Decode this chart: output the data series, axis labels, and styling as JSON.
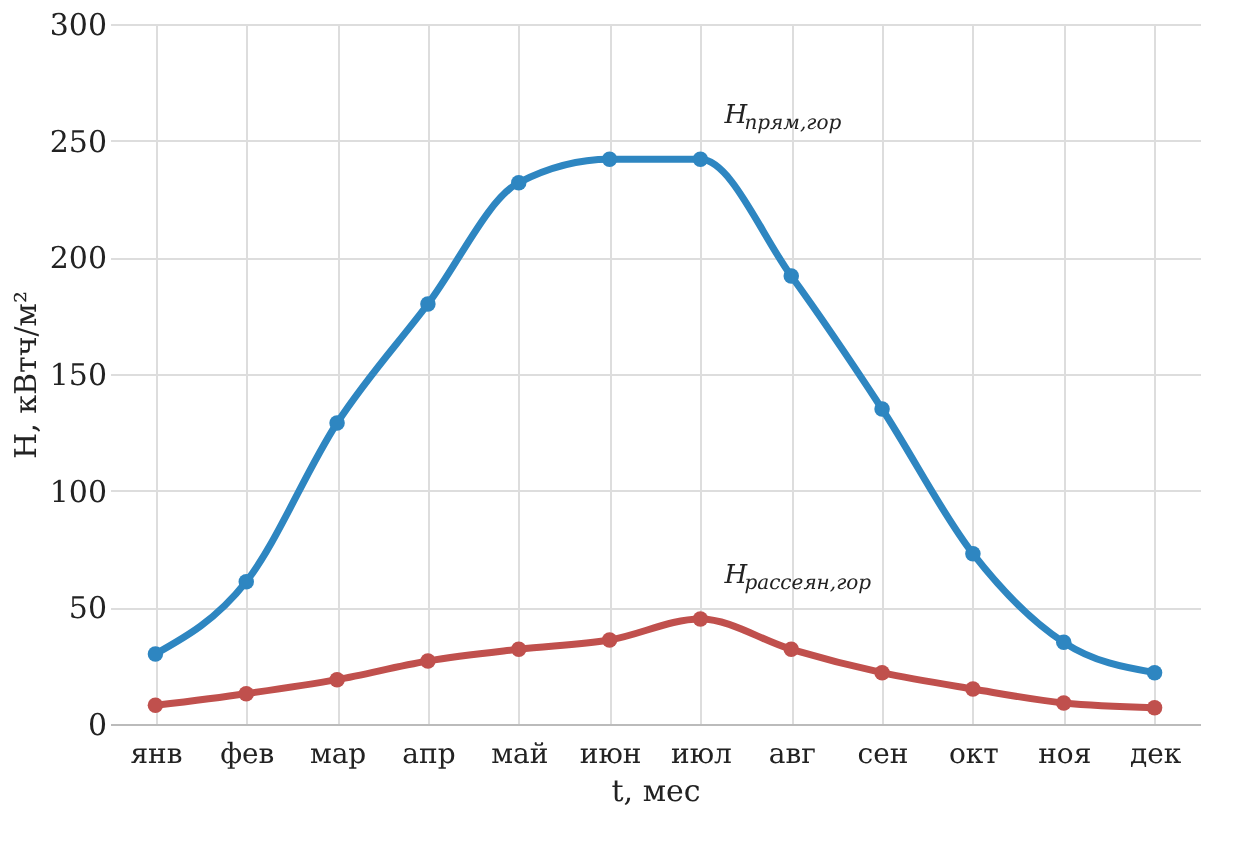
{
  "chart_data": {
    "type": "line",
    "xlabel": "t, мес",
    "ylabel": "H, кВтч/м²",
    "categories": [
      "янв",
      "фев",
      "мар",
      "апр",
      "май",
      "июн",
      "июл",
      "авг",
      "сен",
      "окт",
      "ноя",
      "дек"
    ],
    "series": [
      {
        "name": "H$_{прям,гор}$",
        "color": "#2e86c1",
        "values": [
          30,
          61,
          129,
          180,
          232,
          242,
          242,
          192,
          135,
          73,
          35,
          22
        ]
      },
      {
        "name": "H$_{рассеян,гор}$",
        "color": "#c0504d",
        "values": [
          8,
          13,
          19,
          27,
          32,
          36,
          45,
          32,
          22,
          15,
          9,
          7
        ]
      }
    ],
    "ylim": [
      0,
      300
    ],
    "yticks": [
      0,
      50,
      100,
      150,
      200,
      250,
      300
    ],
    "grid": true,
    "marker": "circle",
    "line_style": "solid"
  }
}
